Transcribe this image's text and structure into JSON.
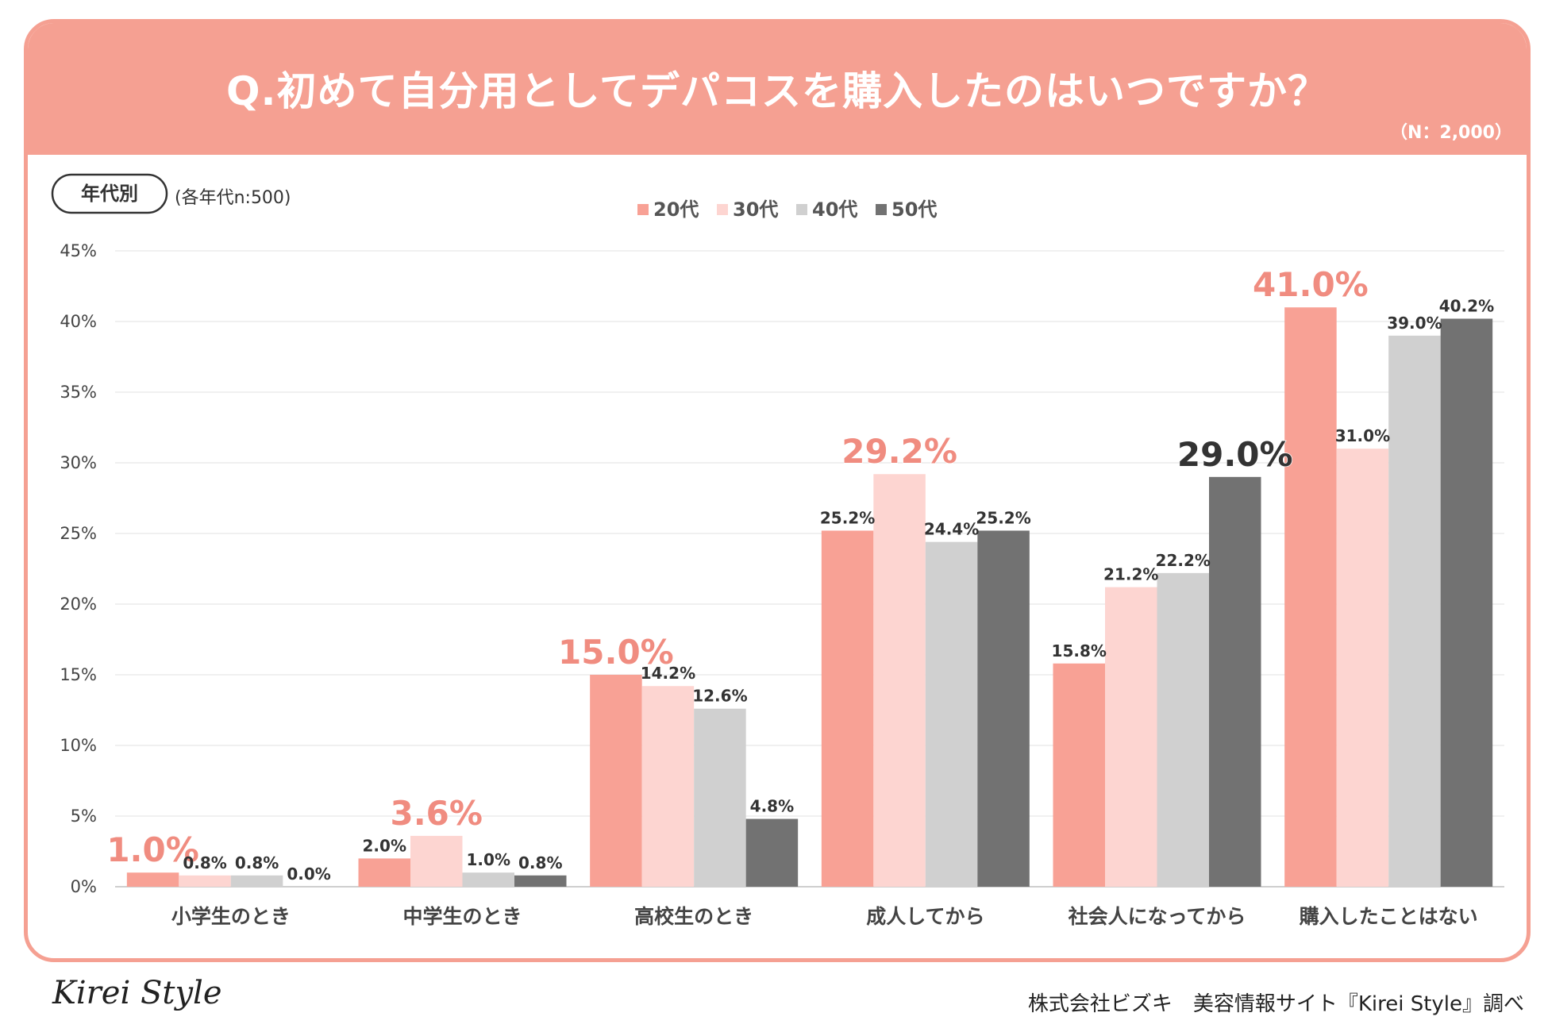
{
  "title": "Q.初めて自分用としてデパコスを購入したのはいつですか？",
  "sample_size": "（N：2,000）",
  "segment_badge": "年代別",
  "segment_note": "(各年代n:500)",
  "footer": {
    "logo": "Kirei Style",
    "credit": "株式会社ビズキ　美容情報サイト『Kirei Style』調べ"
  },
  "colors": {
    "header": "#f5a092",
    "series": [
      "#f8a195",
      "#fdd5d1",
      "#d0d0d0",
      "#727272"
    ],
    "highlight_label": "#f08c80"
  },
  "chart_data": {
    "type": "bar",
    "title": "Q.初めて自分用としてデパコスを購入したのはいつですか？",
    "xlabel": "",
    "ylabel": "",
    "ylim": [
      0,
      45
    ],
    "yticks": [
      0,
      5,
      10,
      15,
      20,
      25,
      30,
      35,
      40,
      45
    ],
    "ytick_labels": [
      "0%",
      "5%",
      "10%",
      "15%",
      "20%",
      "25%",
      "30%",
      "35%",
      "40%",
      "45%"
    ],
    "grid": true,
    "legend_position": "top-center",
    "categories": [
      "小学生のとき",
      "中学生のとき",
      "高校生のとき",
      "成人してから",
      "社会人になってから",
      "購入したことはない"
    ],
    "series": [
      {
        "name": "20代",
        "values": [
          1.0,
          2.0,
          15.0,
          25.2,
          15.8,
          41.0
        ],
        "labels": [
          "1.0%",
          "2.0%",
          "15.0%",
          "25.2%",
          "15.8%",
          "41.0%"
        ]
      },
      {
        "name": "30代",
        "values": [
          0.8,
          3.6,
          14.2,
          29.2,
          21.2,
          31.0
        ],
        "labels": [
          "0.8%",
          "3.6%",
          "14.2%",
          "29.2%",
          "21.2%",
          "31.0%"
        ]
      },
      {
        "name": "40代",
        "values": [
          0.8,
          1.0,
          12.6,
          24.4,
          22.2,
          39.0
        ],
        "labels": [
          "0.8%",
          "1.0%",
          "12.6%",
          "24.4%",
          "22.2%",
          "39.0%"
        ]
      },
      {
        "name": "50代",
        "values": [
          0.0,
          0.8,
          4.8,
          25.2,
          29.0,
          40.2
        ],
        "labels": [
          "0.0%",
          "0.8%",
          "4.8%",
          "25.2%",
          "29.0%",
          "40.2%"
        ]
      }
    ],
    "highlights": [
      {
        "category": 0,
        "series": 0
      },
      {
        "category": 1,
        "series": 1
      },
      {
        "category": 2,
        "series": 0
      },
      {
        "category": 3,
        "series": 1
      },
      {
        "category": 4,
        "series": 3
      },
      {
        "category": 5,
        "series": 0
      }
    ]
  }
}
